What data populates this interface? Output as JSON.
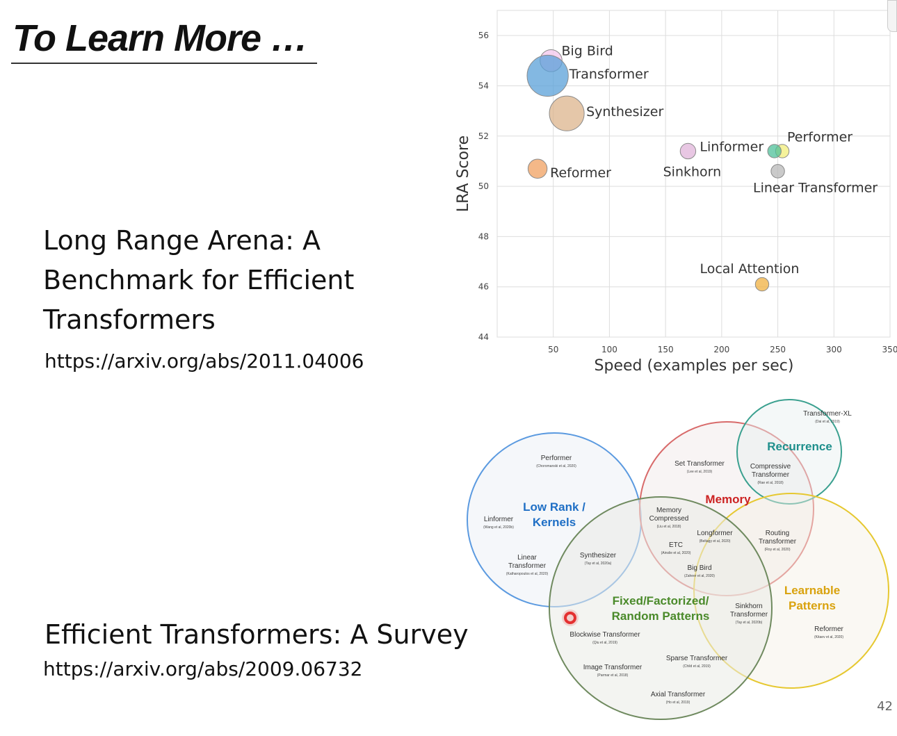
{
  "slide": {
    "title": "To Learn More …",
    "page_number": "42"
  },
  "references": [
    {
      "title": "Long Range Arena: A Benchmark for Efficient Transformers",
      "url": "https://arxiv.org/abs/2011.04006"
    },
    {
      "title": "Efficient Transformers: A Survey",
      "url": "https://arxiv.org/abs/2009.06732"
    }
  ],
  "chart_data": {
    "type": "scatter",
    "xlabel": "Speed (examples per sec)",
    "ylabel": "LRA Score",
    "xlim": [
      0,
      350
    ],
    "ylim": [
      44,
      57
    ],
    "xticks": [
      50,
      100,
      150,
      200,
      250,
      300,
      350
    ],
    "yticks": [
      44,
      46,
      48,
      50,
      52,
      54,
      56
    ],
    "grid": true,
    "points": [
      {
        "label": "Big Bird",
        "x": 48,
        "y": 55.0,
        "memory": 8,
        "color": "#f3c6ec"
      },
      {
        "label": "Transformer",
        "x": 45,
        "y": 54.4,
        "memory": 28,
        "color": "#5aa0d8"
      },
      {
        "label": "Synthesizer",
        "x": 62,
        "y": 52.9,
        "memory": 20,
        "color": "#dcb48c"
      },
      {
        "label": "Linformer",
        "x": 170,
        "y": 51.4,
        "memory": 4,
        "color": "#e0b4da"
      },
      {
        "label": "Sinkhorn",
        "x": 170,
        "y": 51.4,
        "memory": 4,
        "color": "#e0b4da"
      },
      {
        "label": "Reformer",
        "x": 36,
        "y": 50.7,
        "memory": 6,
        "color": "#f0a060"
      },
      {
        "label": "Performer",
        "x": 254,
        "y": 51.4,
        "memory": 3,
        "color": "#f2ee7a"
      },
      {
        "label": "",
        "x": 247,
        "y": 51.4,
        "memory": 3,
        "color": "#4ec09a"
      },
      {
        "label": "Linear Transformer",
        "x": 250,
        "y": 50.6,
        "memory": 3,
        "color": "#b8b8b8"
      },
      {
        "label": "Local Attention",
        "x": 236,
        "y": 46.1,
        "memory": 3,
        "color": "#f0b040"
      }
    ]
  },
  "venn": {
    "categories": [
      {
        "key": "low_rank",
        "label": "Low Rank / Kernels",
        "color": "#1f6fc5"
      },
      {
        "key": "memory",
        "label": "Memory",
        "color": "#cc2222"
      },
      {
        "key": "recurrence",
        "label": "Recurrence",
        "color": "#1e8f8c"
      },
      {
        "key": "fixed",
        "label": "Fixed/Factorized/ Random Patterns",
        "color": "#4a8a2a"
      },
      {
        "key": "learnable",
        "label": "Learnable Patterns",
        "color": "#d9a20d"
      }
    ],
    "items": [
      {
        "name": "Performer",
        "cite": "(Choromanski et al, 2020)"
      },
      {
        "name": "Linformer",
        "cite": "(Wang et al, 2020b)"
      },
      {
        "name": "Linear Transformer",
        "cite": "(Katharopoulos et al, 2020)"
      },
      {
        "name": "Synthesizer",
        "cite": "(Tay et al, 2020a)"
      },
      {
        "name": "Set Transformer",
        "cite": "(Lee et al, 2019)"
      },
      {
        "name": "Memory Compressed",
        "cite": "(Liu et al, 2018)"
      },
      {
        "name": "ETC",
        "cite": "(Ainslie et al, 2020)"
      },
      {
        "name": "Longformer",
        "cite": "(Beltagy et al, 2020)"
      },
      {
        "name": "Big Bird",
        "cite": "(Zaheer et al, 2020)"
      },
      {
        "name": "Transformer-XL",
        "cite": "(Dai et al, 2019)"
      },
      {
        "name": "Compressive Transformer",
        "cite": "(Rae et al, 2018)"
      },
      {
        "name": "Routing Transformer",
        "cite": "(Roy et al, 2020)"
      },
      {
        "name": "Sinkhorn Transformer",
        "cite": "(Tay et al, 2020b)"
      },
      {
        "name": "Reformer",
        "cite": "(Kitaev et al, 2020)"
      },
      {
        "name": "Blockwise Transformer",
        "cite": "(Qiu et al, 2019)"
      },
      {
        "name": "Sparse Transformer",
        "cite": "(Child et al, 2019)"
      },
      {
        "name": "Image Transformer",
        "cite": "(Parmar et al, 2018)"
      },
      {
        "name": "Axial Transformer",
        "cite": "(Ho et al, 2019)"
      }
    ]
  },
  "colors": {
    "text": "#111111",
    "grid": "#dddddd",
    "cursor_dot": "#e53030"
  }
}
